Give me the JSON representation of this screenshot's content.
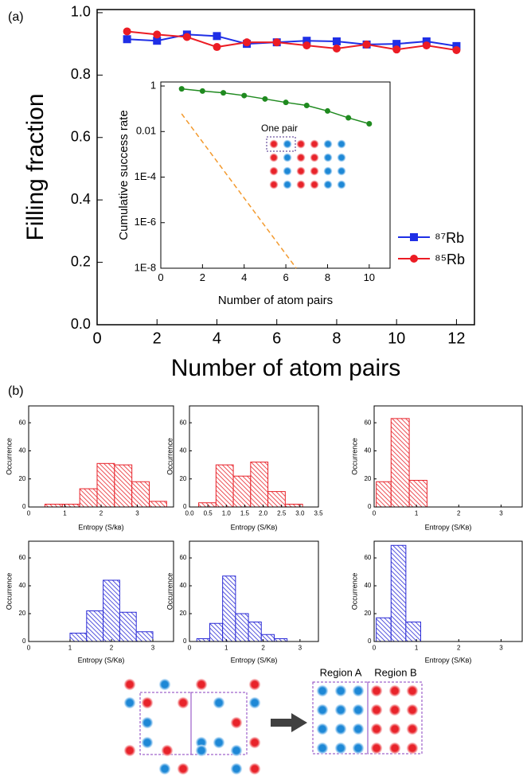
{
  "chart_data": [
    {
      "type": "line",
      "label": "(a)",
      "xlabel": "Number of atom pairs",
      "ylabel": "Filling fraction",
      "x": [
        1,
        2,
        3,
        4,
        5,
        6,
        7,
        8,
        9,
        10,
        11,
        12
      ],
      "xlim": [
        0,
        12.6
      ],
      "xticks": [
        0,
        2,
        4,
        6,
        8,
        10,
        12
      ],
      "ylim": [
        0,
        1.01
      ],
      "yticks": [
        {
          "value": 0,
          "label": "0.0"
        },
        {
          "value": 0.2,
          "label": "0.2"
        },
        {
          "value": 0.4,
          "label": "0.4"
        },
        {
          "value": 0.6,
          "label": "0.6"
        },
        {
          "value": 0.8,
          "label": "0.8"
        },
        {
          "value": 1,
          "label": "1.0"
        }
      ],
      "legend": "lower right",
      "series": [
        {
          "name": "⁸⁷Rb",
          "color": "#1f2fe6",
          "marker": "square",
          "values": [
            0.915,
            0.91,
            0.93,
            0.925,
            0.9,
            0.905,
            0.91,
            0.908,
            0.898,
            0.9,
            0.908,
            0.893
          ]
        },
        {
          "name": "⁸⁵Rb",
          "color": "#ec1c24",
          "marker": "circle",
          "values": [
            0.94,
            0.93,
            0.922,
            0.89,
            0.905,
            0.905,
            0.895,
            0.885,
            0.898,
            0.882,
            0.895,
            0.88
          ]
        }
      ]
    },
    {
      "type": "line",
      "log_y": true,
      "xlabel": "Number of atom pairs",
      "ylabel": "Cumulative success rate",
      "annotation": "One pair",
      "x": [
        1,
        2,
        3,
        4,
        5,
        6,
        7,
        8,
        9,
        10
      ],
      "xlim": [
        0,
        11
      ],
      "xticks": [
        0,
        2,
        4,
        6,
        8,
        10
      ],
      "ylim": [
        1e-08,
        1.5
      ],
      "yticks": [
        1,
        0.01,
        {
          "value": 0.0001,
          "label": "1E-4"
        },
        {
          "value": 1e-06,
          "label": "1E-6"
        },
        {
          "value": 1e-08,
          "label": "1E-8"
        }
      ],
      "series": [
        {
          "color": "#1f8a1f",
          "marker": "circle",
          "values": [
            0.75,
            0.6,
            0.5,
            0.38,
            0.27,
            0.19,
            0.14,
            0.08,
            0.04,
            0.022
          ]
        },
        {
          "color": "#f39a2e",
          "dash": true,
          "x": [
            1,
            6.5
          ],
          "values": [
            0.06,
            1e-08
          ]
        }
      ]
    },
    {
      "type": "histogram",
      "label": "(b)",
      "xlabel": "Entropy (S/kʙ)",
      "ylabel": "Occurrence",
      "color": "#e8232a",
      "bins": [
        0.45,
        0.93,
        1.41,
        1.89,
        2.37,
        2.85,
        3.33,
        3.81
      ],
      "counts": [
        2,
        2,
        13,
        31,
        30,
        18,
        4
      ],
      "xlim": [
        0,
        4
      ],
      "xticks": [
        0,
        1,
        2,
        3
      ],
      "ylim": [
        0,
        72
      ],
      "yticks": [
        0,
        20,
        40,
        60
      ]
    },
    {
      "type": "histogram",
      "xlabel": "Entropy (S/Kʙ)",
      "ylabel": "Occurrence",
      "color": "#e8232a",
      "bins": [
        0.25,
        0.72,
        1.19,
        1.66,
        2.13,
        2.6,
        3.07
      ],
      "counts": [
        3,
        30,
        22,
        32,
        11,
        2
      ],
      "xlim": [
        0,
        3.5
      ],
      "xticks": [
        {
          "value": 0,
          "label": "0.0"
        },
        0.5,
        {
          "value": 1,
          "label": "1.0"
        },
        1.5,
        {
          "value": 2,
          "label": "2.0"
        },
        2.5,
        {
          "value": 3,
          "label": "3.0"
        },
        3.5
      ],
      "ylim": [
        0,
        72
      ],
      "yticks": [
        0,
        20,
        40,
        60
      ]
    },
    {
      "type": "histogram",
      "xlabel": "Entropy (S/Kʙ)",
      "ylabel": "Occurrence",
      "color": "#e8232a",
      "bins": [
        0.05,
        0.4,
        0.83,
        1.25
      ],
      "counts": [
        18,
        63,
        19
      ],
      "xlim": [
        0,
        3.5
      ],
      "xticks": [
        0,
        1,
        2,
        3
      ],
      "ylim": [
        0,
        72
      ],
      "yticks": [
        0,
        20,
        40,
        60
      ]
    },
    {
      "type": "histogram",
      "xlabel": "Entropy (S/Kʙ)",
      "ylabel": "Occurrence",
      "color": "#2a2ad6",
      "bins": [
        1.0,
        1.4,
        1.8,
        2.2,
        2.6,
        3.0
      ],
      "counts": [
        6,
        22,
        44,
        21,
        7
      ],
      "xlim": [
        0,
        3.5
      ],
      "xticks": [
        0,
        1,
        2,
        3
      ],
      "ylim": [
        0,
        72
      ],
      "yticks": [
        0,
        20,
        40,
        60
      ]
    },
    {
      "type": "histogram",
      "xlabel": "Entropy (S/Kʙ)",
      "ylabel": "Occurrence",
      "color": "#2a2ad6",
      "bins": [
        0.2,
        0.55,
        0.9,
        1.25,
        1.6,
        1.95,
        2.3,
        2.65
      ],
      "counts": [
        2,
        13,
        47,
        20,
        14,
        5,
        2
      ],
      "xlim": [
        0,
        3.5
      ],
      "xticks": [
        0,
        1,
        2,
        3
      ],
      "ylim": [
        0,
        72
      ],
      "yticks": [
        0,
        20,
        40,
        60
      ]
    },
    {
      "type": "histogram",
      "xlabel": "Entropy (S/Kʙ)",
      "ylabel": "Occurrence",
      "color": "#2a2ad6",
      "bins": [
        0.05,
        0.4,
        0.75,
        1.1
      ],
      "counts": [
        17,
        69,
        14
      ],
      "xlim": [
        0,
        3.5
      ],
      "xticks": [
        0,
        1,
        2,
        3
      ],
      "ylim": [
        0,
        72
      ],
      "yticks": [
        0,
        20,
        40,
        60
      ]
    }
  ],
  "diagram": {
    "region_labels": [
      "Region A",
      "Region B"
    ]
  }
}
